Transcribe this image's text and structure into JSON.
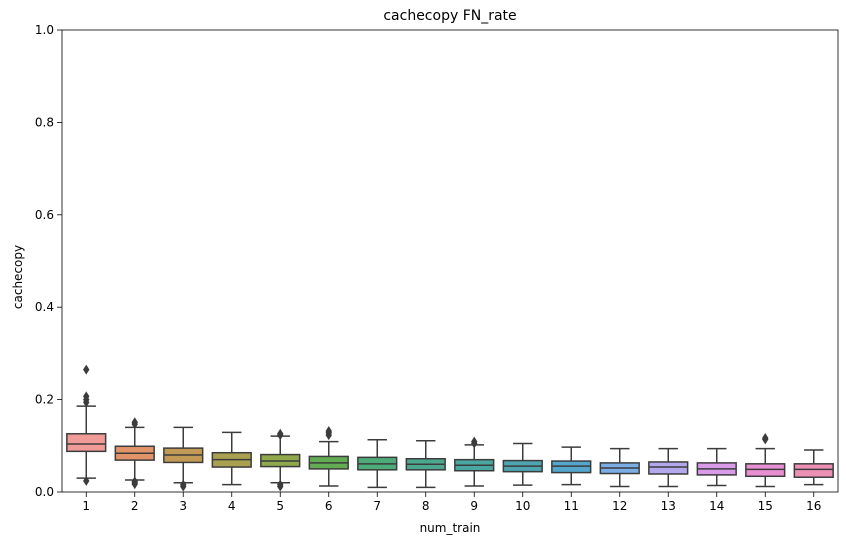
{
  "chart_data": {
    "type": "box",
    "title": "cachecopy FN_rate",
    "xlabel": "num_train",
    "ylabel": "cachecopy",
    "ylim": [
      0.0,
      1.0
    ],
    "yticks": [
      "0.0",
      "0.2",
      "0.4",
      "0.6",
      "0.8",
      "1.0"
    ],
    "grid": false,
    "boxes": [
      {
        "label": "1",
        "color": "#f09b97",
        "whislo": 0.03,
        "q1": 0.088,
        "med": 0.104,
        "q3": 0.126,
        "whishi": 0.186,
        "fliers": [
          0.024,
          0.194,
          0.2,
          0.207,
          0.265
        ]
      },
      {
        "label": "2",
        "color": "#e1946a",
        "whislo": 0.026,
        "q1": 0.069,
        "med": 0.084,
        "q3": 0.099,
        "whishi": 0.14,
        "fliers": [
          0.017,
          0.02,
          0.023,
          0.147,
          0.151
        ]
      },
      {
        "label": "3",
        "color": "#c39a55",
        "whislo": 0.02,
        "q1": 0.064,
        "med": 0.08,
        "q3": 0.095,
        "whishi": 0.14,
        "fliers": [
          0.012,
          0.016
        ]
      },
      {
        "label": "4",
        "color": "#a9a14f",
        "whislo": 0.016,
        "q1": 0.054,
        "med": 0.07,
        "q3": 0.085,
        "whishi": 0.129,
        "fliers": []
      },
      {
        "label": "5",
        "color": "#8fa84c",
        "whislo": 0.02,
        "q1": 0.055,
        "med": 0.067,
        "q3": 0.081,
        "whishi": 0.121,
        "fliers": [
          0.012,
          0.016,
          0.123,
          0.126
        ]
      },
      {
        "label": "6",
        "color": "#62ad53",
        "whislo": 0.013,
        "q1": 0.05,
        "med": 0.063,
        "q3": 0.077,
        "whishi": 0.109,
        "fliers": [
          0.123,
          0.128,
          0.132
        ]
      },
      {
        "label": "7",
        "color": "#4daa79",
        "whislo": 0.01,
        "q1": 0.048,
        "med": 0.061,
        "q3": 0.075,
        "whishi": 0.113,
        "fliers": []
      },
      {
        "label": "8",
        "color": "#4ba88e",
        "whislo": 0.01,
        "q1": 0.048,
        "med": 0.06,
        "q3": 0.072,
        "whishi": 0.111,
        "fliers": []
      },
      {
        "label": "9",
        "color": "#4aa6a1",
        "whislo": 0.013,
        "q1": 0.046,
        "med": 0.058,
        "q3": 0.07,
        "whishi": 0.102,
        "fliers": [
          0.105,
          0.109
        ]
      },
      {
        "label": "10",
        "color": "#4ea5b1",
        "whislo": 0.015,
        "q1": 0.044,
        "med": 0.056,
        "q3": 0.068,
        "whishi": 0.105,
        "fliers": []
      },
      {
        "label": "11",
        "color": "#54a6cc",
        "whislo": 0.016,
        "q1": 0.042,
        "med": 0.056,
        "q3": 0.067,
        "whishi": 0.097,
        "fliers": []
      },
      {
        "label": "12",
        "color": "#7aaee5",
        "whislo": 0.012,
        "q1": 0.04,
        "med": 0.052,
        "q3": 0.063,
        "whishi": 0.094,
        "fliers": []
      },
      {
        "label": "13",
        "color": "#b2a8eb",
        "whislo": 0.012,
        "q1": 0.039,
        "med": 0.054,
        "q3": 0.065,
        "whishi": 0.094,
        "fliers": []
      },
      {
        "label": "14",
        "color": "#d89ae9",
        "whislo": 0.014,
        "q1": 0.037,
        "med": 0.05,
        "q3": 0.063,
        "whishi": 0.094,
        "fliers": []
      },
      {
        "label": "15",
        "color": "#e88fd3",
        "whislo": 0.012,
        "q1": 0.034,
        "med": 0.049,
        "q3": 0.061,
        "whishi": 0.094,
        "fliers": [
          0.114,
          0.117
        ]
      },
      {
        "label": "16",
        "color": "#ec90b4",
        "whislo": 0.016,
        "q1": 0.032,
        "med": 0.049,
        "q3": 0.061,
        "whishi": 0.091,
        "fliers": []
      }
    ]
  }
}
